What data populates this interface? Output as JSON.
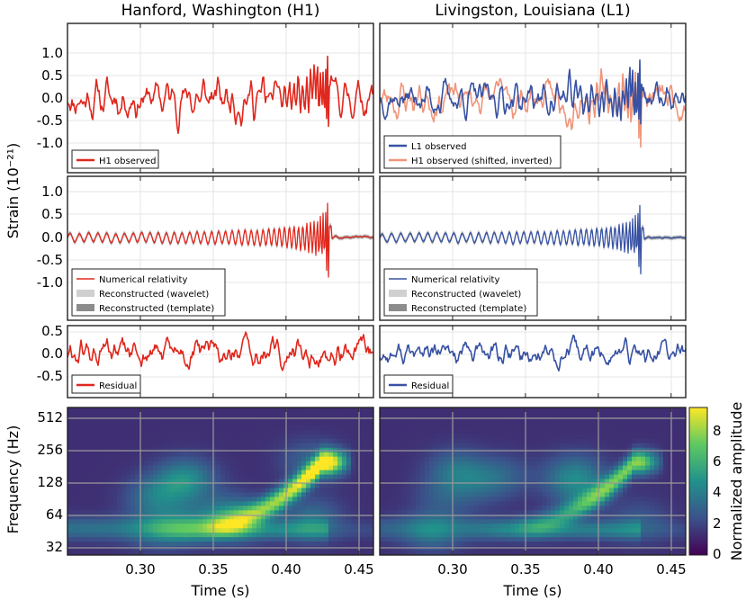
{
  "figure": {
    "col_titles": [
      "Hanford, Washington (H1)",
      "Livingston, Louisiana (L1)"
    ],
    "strain_ylabel": "Strain (10⁻²¹)",
    "freq_ylabel": "Frequency (Hz)",
    "xlabel": "Time (s)",
    "colorbar_label": "Normalized amplitude",
    "colorbar_ticks": [
      "0",
      "2",
      "4",
      "6",
      "8"
    ],
    "colors": {
      "h1": "#e0281e",
      "l1": "#3852a3",
      "h1_shifted": "#f0957a",
      "wavelet": "#d0d0d0",
      "template": "#8c8c8c"
    }
  },
  "legends": {
    "row1_left": [
      "H1 observed"
    ],
    "row1_right": [
      "L1 observed",
      "H1 observed (shifted, inverted)"
    ],
    "row2_left": [
      "Numerical relativity",
      "Reconstructed (wavelet)",
      "Reconstructed (template)"
    ],
    "row2_right": [
      "Numerical relativity",
      "Reconstructed (wavelet)",
      "Reconstructed (template)"
    ],
    "row3_left": [
      "Residual"
    ],
    "row3_right": [
      "Residual"
    ]
  },
  "chart_data": [
    {
      "type": "line",
      "panel": "H1 observed",
      "xlim": [
        0.25,
        0.46
      ],
      "ylim": [
        -1.5,
        1.5
      ],
      "xticks": [
        "0.30",
        "0.35",
        "0.40",
        "0.45"
      ],
      "yticks": [
        "1.0",
        "0.5",
        "0.0",
        "-0.5",
        "-1.0"
      ],
      "series": [
        {
          "name": "H1 observed",
          "color": "#e0281e"
        }
      ]
    },
    {
      "type": "line",
      "panel": "L1 observed",
      "xlim": [
        0.25,
        0.46
      ],
      "ylim": [
        -1.5,
        1.5
      ],
      "series": [
        {
          "name": "L1 observed",
          "color": "#3852a3"
        },
        {
          "name": "H1 observed (shifted, inverted)",
          "color": "#f0957a"
        }
      ]
    },
    {
      "type": "line",
      "panel": "H1 reconstruction",
      "xlim": [
        0.25,
        0.46
      ],
      "ylim": [
        -1.5,
        1.5
      ],
      "yticks": [
        "1.0",
        "0.5",
        "0.0",
        "-0.5",
        "-1.0"
      ],
      "series": [
        {
          "name": "Numerical relativity"
        },
        {
          "name": "Reconstructed (wavelet)"
        },
        {
          "name": "Reconstructed (template)"
        }
      ]
    },
    {
      "type": "line",
      "panel": "L1 reconstruction",
      "xlim": [
        0.25,
        0.46
      ],
      "ylim": [
        -1.5,
        1.5
      ],
      "series": [
        {
          "name": "Numerical relativity"
        },
        {
          "name": "Reconstructed (wavelet)"
        },
        {
          "name": "Reconstructed (template)"
        }
      ]
    },
    {
      "type": "line",
      "panel": "H1 residual",
      "xlim": [
        0.25,
        0.46
      ],
      "ylim": [
        -0.6,
        0.6
      ],
      "yticks": [
        "0.5",
        "0.0",
        "-0.5"
      ],
      "series": [
        {
          "name": "Residual"
        }
      ]
    },
    {
      "type": "line",
      "panel": "L1 residual",
      "xlim": [
        0.25,
        0.46
      ],
      "ylim": [
        -0.6,
        0.6
      ],
      "series": [
        {
          "name": "Residual"
        }
      ]
    },
    {
      "type": "heatmap",
      "panel": "H1 time-frequency",
      "xlim": [
        0.25,
        0.46
      ],
      "yscale": "log2",
      "yticks": [
        "512",
        "256",
        "128",
        "64",
        "32"
      ],
      "xticks": [
        "0.30",
        "0.35",
        "0.40",
        "0.45"
      ],
      "colorscale": "viridis",
      "zlim": [
        0,
        9.5
      ],
      "peak": {
        "time": 0.42,
        "freq": 150,
        "amplitude": 9
      }
    },
    {
      "type": "heatmap",
      "panel": "L1 time-frequency",
      "xlim": [
        0.25,
        0.46
      ],
      "yscale": "log2",
      "xticks": [
        "0.30",
        "0.35",
        "0.40",
        "0.45"
      ],
      "colorscale": "viridis",
      "zlim": [
        0,
        9.5
      ],
      "peak": {
        "time": 0.42,
        "freq": 150,
        "amplitude": 6.5
      }
    }
  ]
}
